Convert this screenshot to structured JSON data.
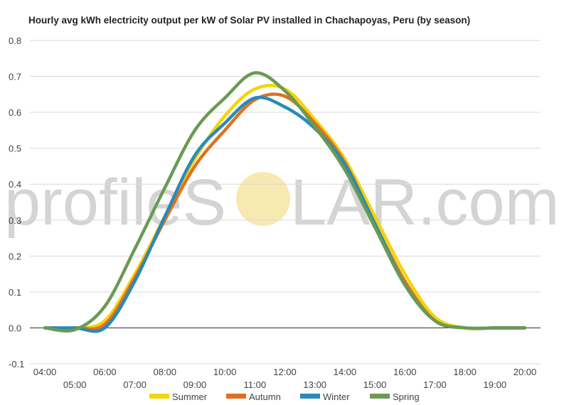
{
  "chart_data": {
    "type": "line",
    "title": "Hourly avg kWh electricity output per kW of Solar PV installed in Chachapoyas, Peru (by season)",
    "xlabel": "",
    "ylabel": "",
    "x": [
      "04:00",
      "05:00",
      "06:00",
      "07:00",
      "08:00",
      "09:00",
      "10:00",
      "11:00",
      "12:00",
      "13:00",
      "14:00",
      "15:00",
      "16:00",
      "17:00",
      "18:00",
      "19:00",
      "20:00"
    ],
    "ylim": [
      -0.1,
      0.8
    ],
    "yticks": [
      "-0.1",
      "0.0",
      "0.1",
      "0.2",
      "0.3",
      "0.4",
      "0.5",
      "0.6",
      "0.7",
      "0.8"
    ],
    "ytick_values": [
      -0.1,
      0.0,
      0.1,
      0.2,
      0.3,
      0.4,
      0.5,
      0.6,
      0.7,
      0.8
    ],
    "grid": true,
    "legend_position": "bottom",
    "series": [
      {
        "name": "Summer",
        "color": "#f5d40a",
        "values": [
          0.0,
          0.0,
          0.02,
          0.15,
          0.31,
          0.47,
          0.59,
          0.665,
          0.665,
          0.58,
          0.47,
          0.31,
          0.15,
          0.03,
          0.0,
          0.0,
          0.0
        ]
      },
      {
        "name": "Autumn",
        "color": "#e07020",
        "values": [
          0.0,
          0.0,
          0.01,
          0.14,
          0.3,
          0.45,
          0.55,
          0.635,
          0.645,
          0.57,
          0.46,
          0.29,
          0.13,
          0.02,
          0.0,
          0.0,
          0.0
        ]
      },
      {
        "name": "Winter",
        "color": "#2a8ab8",
        "values": [
          0.0,
          0.0,
          0.0,
          0.13,
          0.31,
          0.48,
          0.57,
          0.64,
          0.615,
          0.555,
          0.455,
          0.29,
          0.12,
          0.02,
          0.0,
          0.0,
          0.0
        ]
      },
      {
        "name": "Spring",
        "color": "#6a9a55",
        "values": [
          0.0,
          -0.005,
          0.06,
          0.22,
          0.39,
          0.55,
          0.64,
          0.71,
          0.66,
          0.56,
          0.44,
          0.28,
          0.12,
          0.02,
          0.0,
          0.0,
          0.0
        ]
      }
    ]
  },
  "watermark": {
    "text_left": "profileS",
    "text_right": "LAR.com",
    "sun_color": "#f7e9b0"
  }
}
